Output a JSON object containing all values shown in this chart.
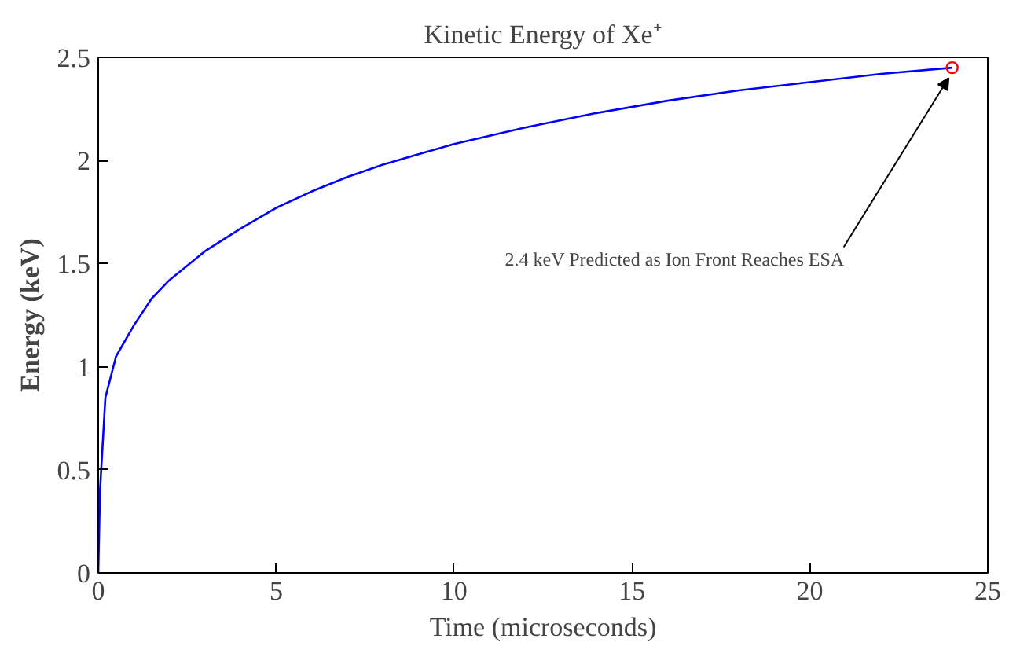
{
  "chart_data": {
    "type": "line",
    "title": "Kinetic Energy of Xe⁺",
    "xlabel": "Time (microseconds)",
    "ylabel": "Energy (keV)",
    "xlim": [
      0,
      25
    ],
    "ylim": [
      0,
      2.5
    ],
    "xticks": [
      0,
      5,
      10,
      15,
      20,
      25
    ],
    "yticks": [
      0,
      0.5,
      1,
      1.5,
      2,
      2.5
    ],
    "grid": false,
    "series": [
      {
        "color": "#0000ff",
        "marker": "none",
        "line_style": "solid",
        "x": [
          0,
          0.05,
          0.2,
          0.5,
          1,
          1.5,
          2,
          3,
          4,
          5,
          6,
          7,
          8,
          9,
          10,
          12,
          14,
          16,
          18,
          20,
          22,
          24
        ],
        "values": [
          0,
          0.4,
          0.85,
          1.05,
          1.2,
          1.33,
          1.42,
          1.56,
          1.67,
          1.77,
          1.85,
          1.92,
          1.98,
          2.03,
          2.08,
          2.16,
          2.23,
          2.29,
          2.34,
          2.38,
          2.42,
          2.45
        ]
      },
      {
        "type": "scatter",
        "color": "#ff0000",
        "marker": "circle",
        "x": [
          24
        ],
        "values": [
          2.45
        ]
      }
    ],
    "annotations": [
      {
        "text": "2.4 keV Predicted as Ion Front Reaches ESA",
        "x": 24,
        "y": 2.45
      }
    ]
  }
}
